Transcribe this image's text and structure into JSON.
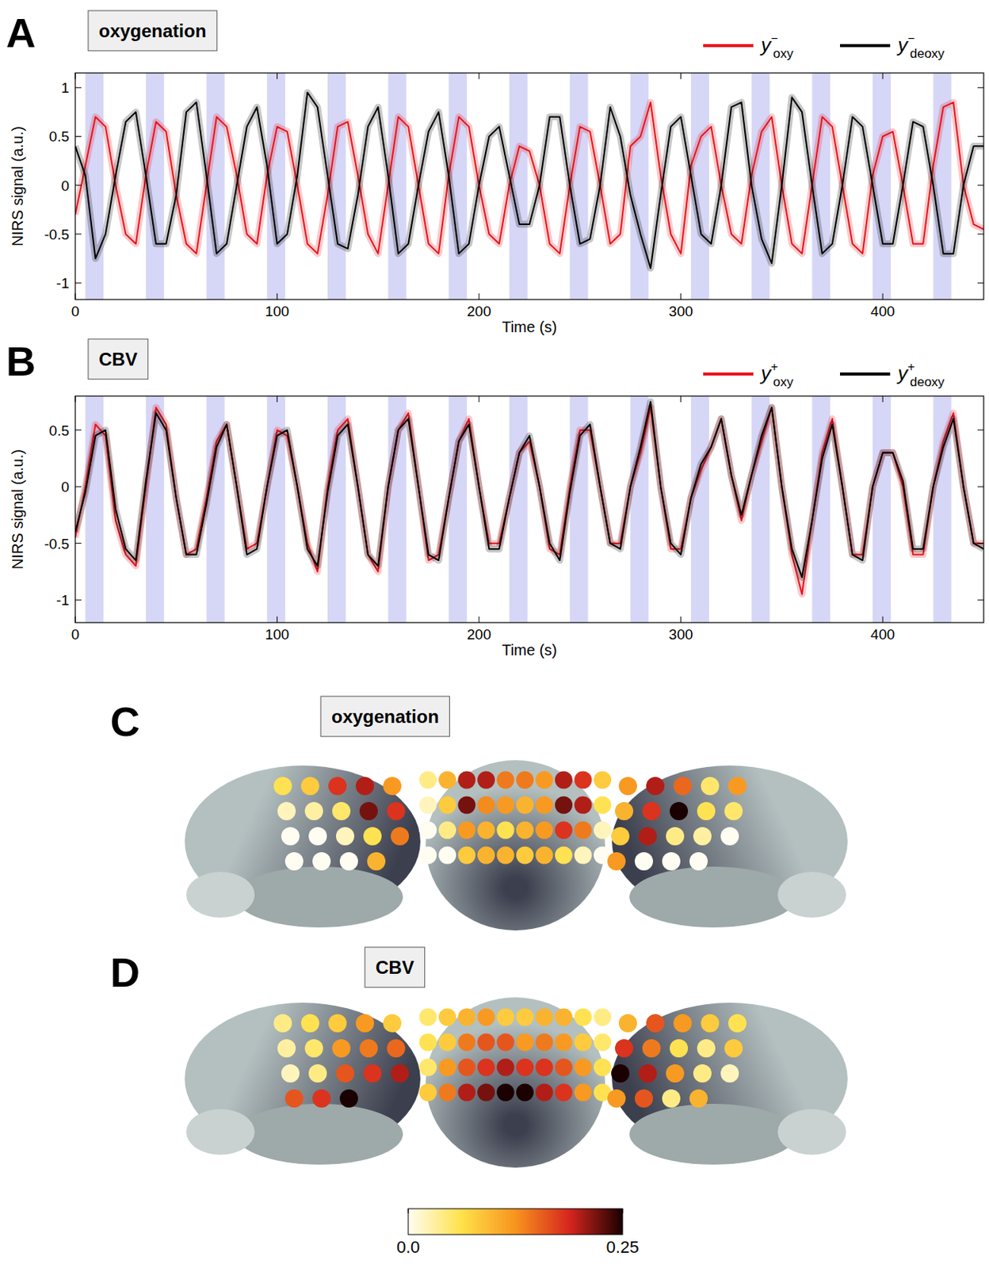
{
  "chart_data": [
    {
      "type": "line",
      "panel": "A",
      "title": "oxygenation",
      "x_label": "Time (s)",
      "y_label": "NIRS signal (a.u.)",
      "xlim": [
        0,
        450
      ],
      "ylim": [
        -1.17,
        1.15
      ],
      "xticks": [
        0,
        100,
        200,
        300,
        400
      ],
      "yticks": [
        -1,
        -0.5,
        0,
        0.5,
        1
      ],
      "stim_blocks": [
        [
          5,
          14
        ],
        [
          35,
          44
        ],
        [
          65,
          74
        ],
        [
          95,
          104
        ],
        [
          125,
          134
        ],
        [
          155,
          164
        ],
        [
          185,
          194
        ],
        [
          215,
          224
        ],
        [
          245,
          254
        ],
        [
          275,
          284
        ],
        [
          305,
          314
        ],
        [
          335,
          344
        ],
        [
          365,
          374
        ],
        [
          395,
          404
        ],
        [
          425,
          434
        ]
      ],
      "x": [
        0,
        5,
        10,
        15,
        20,
        25,
        30,
        35,
        40,
        45,
        50,
        55,
        60,
        65,
        70,
        75,
        80,
        85,
        90,
        95,
        100,
        105,
        110,
        115,
        120,
        125,
        130,
        135,
        140,
        145,
        150,
        155,
        160,
        165,
        170,
        175,
        180,
        185,
        190,
        195,
        200,
        205,
        210,
        215,
        220,
        225,
        230,
        235,
        240,
        245,
        250,
        255,
        260,
        265,
        270,
        275,
        280,
        285,
        290,
        295,
        300,
        305,
        310,
        315,
        320,
        325,
        330,
        335,
        340,
        345,
        350,
        355,
        360,
        365,
        370,
        375,
        380,
        385,
        390,
        395,
        400,
        405,
        410,
        415,
        420,
        425,
        430,
        435,
        440,
        445,
        450
      ],
      "series": [
        {
          "name": "y",
          "superscript": "−",
          "subscript": "oxy",
          "color": "#e8141c",
          "values": [
            -0.3,
            0.2,
            0.7,
            0.6,
            0.0,
            -0.5,
            -0.6,
            0.1,
            0.65,
            0.55,
            -0.1,
            -0.6,
            -0.7,
            0.0,
            0.7,
            0.6,
            0.1,
            -0.5,
            -0.6,
            0.1,
            0.6,
            0.55,
            0.0,
            -0.6,
            -0.7,
            -0.1,
            0.6,
            0.65,
            0.1,
            -0.5,
            -0.7,
            0.0,
            0.7,
            0.6,
            0.0,
            -0.6,
            -0.7,
            0.1,
            0.7,
            0.6,
            0.0,
            -0.5,
            -0.6,
            0.0,
            0.4,
            0.35,
            0.0,
            -0.6,
            -0.7,
            0.0,
            0.6,
            0.55,
            0.0,
            -0.6,
            -0.5,
            0.4,
            0.5,
            0.85,
            0.1,
            -0.5,
            -0.7,
            0.2,
            0.5,
            0.6,
            0.0,
            -0.5,
            -0.6,
            0.1,
            0.55,
            0.7,
            0.0,
            -0.6,
            -0.7,
            0.0,
            0.7,
            0.6,
            0.0,
            -0.6,
            -0.7,
            0.1,
            0.5,
            0.55,
            0.0,
            -0.6,
            -0.6,
            0.2,
            0.8,
            0.85,
            0.0,
            -0.4,
            -0.45
          ]
        },
        {
          "name": "y",
          "superscript": "−",
          "subscript": "deoxy",
          "color": "#000000",
          "values": [
            0.4,
            0.1,
            -0.75,
            -0.5,
            0.1,
            0.65,
            0.75,
            0.1,
            -0.6,
            -0.6,
            -0.1,
            0.75,
            0.85,
            0.1,
            -0.7,
            -0.6,
            0.0,
            0.6,
            0.8,
            0.2,
            -0.6,
            -0.5,
            0.1,
            0.95,
            0.8,
            0.1,
            -0.6,
            -0.65,
            -0.1,
            0.6,
            0.8,
            0.1,
            -0.7,
            -0.6,
            0.0,
            0.55,
            0.75,
            0.1,
            -0.7,
            -0.6,
            0.0,
            0.5,
            0.6,
            0.1,
            -0.4,
            -0.4,
            0.0,
            0.7,
            0.7,
            0.0,
            -0.6,
            -0.55,
            0.0,
            0.8,
            0.5,
            -0.1,
            -0.5,
            -0.85,
            -0.1,
            0.6,
            0.7,
            0.1,
            -0.5,
            -0.6,
            0.0,
            0.8,
            0.85,
            0.0,
            -0.55,
            -0.8,
            0.0,
            0.9,
            0.75,
            0.0,
            -0.7,
            -0.6,
            0.0,
            0.7,
            0.6,
            0.0,
            -0.6,
            -0.6,
            0.0,
            0.65,
            0.6,
            0.0,
            -0.7,
            -0.7,
            0.0,
            0.4,
            0.4
          ]
        }
      ]
    },
    {
      "type": "line",
      "panel": "B",
      "title": "CBV",
      "x_label": "Time (s)",
      "y_label": "NIRS signal (a.u.)",
      "xlim": [
        0,
        450
      ],
      "ylim": [
        -1.2,
        0.8
      ],
      "xticks": [
        0,
        100,
        200,
        300,
        400
      ],
      "yticks": [
        -1,
        -0.5,
        0,
        0.5
      ],
      "stim_blocks": [
        [
          5,
          14
        ],
        [
          35,
          44
        ],
        [
          65,
          74
        ],
        [
          95,
          104
        ],
        [
          125,
          134
        ],
        [
          155,
          164
        ],
        [
          185,
          194
        ],
        [
          215,
          224
        ],
        [
          245,
          254
        ],
        [
          275,
          284
        ],
        [
          305,
          314
        ],
        [
          335,
          344
        ],
        [
          365,
          374
        ],
        [
          395,
          404
        ],
        [
          425,
          434
        ]
      ],
      "x": [
        0,
        5,
        10,
        15,
        20,
        25,
        30,
        35,
        40,
        45,
        50,
        55,
        60,
        65,
        70,
        75,
        80,
        85,
        90,
        95,
        100,
        105,
        110,
        115,
        120,
        125,
        130,
        135,
        140,
        145,
        150,
        155,
        160,
        165,
        170,
        175,
        180,
        185,
        190,
        195,
        200,
        205,
        210,
        215,
        220,
        225,
        230,
        235,
        240,
        245,
        250,
        255,
        260,
        265,
        270,
        275,
        280,
        285,
        290,
        295,
        300,
        305,
        310,
        315,
        320,
        325,
        330,
        335,
        340,
        345,
        350,
        355,
        360,
        365,
        370,
        375,
        380,
        385,
        390,
        395,
        400,
        405,
        410,
        415,
        420,
        425,
        430,
        435,
        440,
        445,
        450
      ],
      "series": [
        {
          "name": "y",
          "superscript": "+",
          "subscript": "oxy",
          "color": "#e8141c",
          "values": [
            -0.45,
            0.0,
            0.55,
            0.45,
            -0.3,
            -0.6,
            -0.7,
            0.0,
            0.7,
            0.55,
            -0.1,
            -0.6,
            -0.55,
            -0.1,
            0.4,
            0.55,
            0.0,
            -0.55,
            -0.5,
            0.0,
            0.5,
            0.45,
            0.0,
            -0.5,
            -0.75,
            0.0,
            0.5,
            0.6,
            0.0,
            -0.6,
            -0.75,
            0.0,
            0.5,
            0.65,
            0.0,
            -0.65,
            -0.6,
            -0.1,
            0.4,
            0.6,
            0.0,
            -0.5,
            -0.5,
            -0.1,
            0.3,
            0.4,
            0.0,
            -0.55,
            -0.6,
            0.0,
            0.5,
            0.5,
            0.0,
            -0.5,
            -0.5,
            0.0,
            0.3,
            0.7,
            0.0,
            -0.55,
            -0.55,
            -0.1,
            0.15,
            0.35,
            0.6,
            0.1,
            -0.3,
            0.1,
            0.4,
            0.7,
            0.0,
            -0.6,
            -0.95,
            -0.3,
            0.3,
            0.6,
            0.0,
            -0.6,
            -0.6,
            0.0,
            0.3,
            0.3,
            0.0,
            -0.6,
            -0.6,
            0.0,
            0.4,
            0.65,
            0.0,
            -0.5,
            -0.5
          ]
        },
        {
          "name": "y",
          "superscript": "+",
          "subscript": "deoxy",
          "color": "#000000",
          "values": [
            -0.4,
            -0.05,
            0.45,
            0.5,
            -0.2,
            -0.55,
            -0.65,
            0.05,
            0.65,
            0.5,
            -0.1,
            -0.6,
            -0.6,
            -0.15,
            0.35,
            0.55,
            0.0,
            -0.6,
            -0.55,
            0.0,
            0.45,
            0.5,
            0.0,
            -0.55,
            -0.7,
            -0.05,
            0.45,
            0.55,
            0.0,
            -0.6,
            -0.7,
            0.0,
            0.5,
            0.6,
            0.0,
            -0.6,
            -0.65,
            -0.1,
            0.4,
            0.55,
            0.0,
            -0.55,
            -0.55,
            -0.1,
            0.3,
            0.45,
            0.0,
            -0.5,
            -0.65,
            -0.05,
            0.45,
            0.55,
            0.0,
            -0.5,
            -0.55,
            0.0,
            0.35,
            0.75,
            0.0,
            -0.5,
            -0.6,
            -0.1,
            0.2,
            0.35,
            0.6,
            0.1,
            -0.25,
            0.1,
            0.45,
            0.7,
            0.0,
            -0.55,
            -0.8,
            -0.3,
            0.25,
            0.55,
            0.0,
            -0.6,
            -0.65,
            0.0,
            0.3,
            0.3,
            0.05,
            -0.55,
            -0.55,
            0.0,
            0.35,
            0.6,
            0.0,
            -0.5,
            -0.55
          ]
        }
      ]
    },
    {
      "type": "dot_map",
      "panel": "C",
      "title": "oxygenation",
      "views": {
        "left": [
          [
            0.06,
            0.08,
            0.18,
            0.2,
            0.12
          ],
          [
            0.02,
            0.03,
            0.05,
            0.22,
            0.18
          ],
          [
            0.0,
            0.0,
            0.02,
            0.06,
            0.14
          ],
          [
            0.0,
            0.0,
            0.0,
            0.1
          ]
        ],
        "front": [
          [
            0.04,
            0.1,
            0.2,
            0.2,
            0.14,
            0.14,
            0.12,
            0.2,
            0.18,
            0.08
          ],
          [
            0.02,
            0.08,
            0.22,
            0.13,
            0.12,
            0.1,
            0.12,
            0.22,
            0.2,
            0.06
          ],
          [
            0.0,
            0.04,
            0.12,
            0.1,
            0.06,
            0.1,
            0.12,
            0.18,
            0.14,
            0.02
          ],
          [
            0.0,
            0.0,
            0.08,
            0.1,
            0.1,
            0.08,
            0.1,
            0.06,
            0.02,
            0.0
          ]
        ],
        "right": [
          [
            0.12,
            0.2,
            0.15,
            0.05,
            0.12
          ],
          [
            0.1,
            0.18,
            0.25,
            0.06,
            0.05
          ],
          [
            0.08,
            0.2,
            0.04,
            0.03,
            0.0
          ],
          [
            0.12,
            0.0,
            0.0,
            0.0
          ]
        ]
      }
    },
    {
      "type": "dot_map",
      "panel": "D",
      "title": "CBV",
      "views": {
        "left": [
          [
            0.04,
            0.06,
            0.08,
            0.12,
            0.08
          ],
          [
            0.03,
            0.05,
            0.12,
            0.14,
            0.15
          ],
          [
            0.02,
            0.04,
            0.16,
            0.18,
            0.2
          ],
          [
            0.16,
            0.18,
            0.25
          ]
        ],
        "front": [
          [
            0.05,
            0.08,
            0.1,
            0.12,
            0.08,
            0.08,
            0.1,
            0.1,
            0.06,
            0.04
          ],
          [
            0.06,
            0.08,
            0.14,
            0.16,
            0.16,
            0.12,
            0.14,
            0.12,
            0.08,
            0.05
          ],
          [
            0.05,
            0.12,
            0.16,
            0.18,
            0.2,
            0.18,
            0.18,
            0.16,
            0.12,
            0.06
          ],
          [
            0.08,
            0.14,
            0.2,
            0.22,
            0.25,
            0.25,
            0.2,
            0.18,
            0.12,
            0.06
          ]
        ],
        "right": [
          [
            0.1,
            0.16,
            0.12,
            0.08,
            0.06
          ],
          [
            0.18,
            0.14,
            0.06,
            0.04,
            0.08
          ],
          [
            0.25,
            0.2,
            0.12,
            0.04,
            0.02
          ],
          [
            0.12,
            0.16,
            0.04,
            0.1
          ]
        ]
      }
    }
  ],
  "colorbar": {
    "range": [
      0,
      0.25
    ],
    "ticks": [
      {
        "value": 0,
        "label": "0.0"
      },
      {
        "value": 0.25,
        "label": "0.25"
      }
    ]
  }
}
